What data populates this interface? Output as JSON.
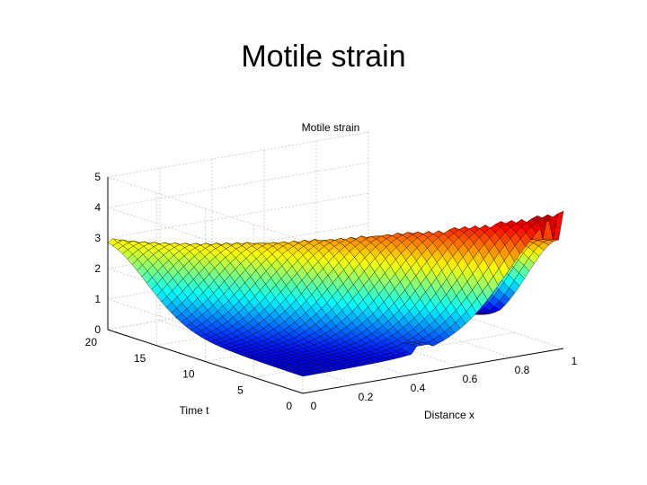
{
  "slide": {
    "title": "Motile strain"
  },
  "chart_data": {
    "type": "surface",
    "title": "Motile strain",
    "xlabel": "Distance x",
    "ylabel": "Time t",
    "zlabel": "",
    "xlim": [
      0,
      1
    ],
    "ylim": [
      0,
      20
    ],
    "zlim": [
      0,
      5
    ],
    "x_ticks": [
      {
        "value": 0,
        "label": "0"
      },
      {
        "value": 0.2,
        "label": "0.2"
      },
      {
        "value": 0.4,
        "label": "0.4"
      },
      {
        "value": 0.6,
        "label": "0.6"
      },
      {
        "value": 0.8,
        "label": "0.8"
      },
      {
        "value": 1,
        "label": "1"
      }
    ],
    "y_ticks": [
      {
        "value": 0,
        "label": "0"
      },
      {
        "value": 5,
        "label": "5"
      },
      {
        "value": 10,
        "label": "10"
      },
      {
        "value": 15,
        "label": "15"
      },
      {
        "value": 20,
        "label": "20"
      }
    ],
    "z_ticks": [
      {
        "value": 0,
        "label": "0"
      },
      {
        "value": 1,
        "label": "1"
      },
      {
        "value": 2,
        "label": "2"
      },
      {
        "value": 3,
        "label": "3"
      },
      {
        "value": 4,
        "label": "4"
      },
      {
        "value": 5,
        "label": "5"
      }
    ],
    "grid": true,
    "colormap": "jet",
    "features": [
      {
        "name": "peak-near-x0",
        "x": 0.02,
        "t": 14.5,
        "z": 2.9
      },
      {
        "name": "peak-at-x1",
        "x": 1.0,
        "t": 0.5,
        "z": 4.5
      },
      {
        "name": "flat-plateau",
        "x": 0.5,
        "t": 20,
        "z": 1.0
      }
    ]
  }
}
